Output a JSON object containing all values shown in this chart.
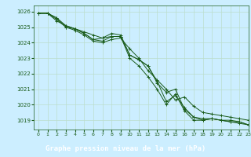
{
  "title": "Graphe pression niveau de la mer (hPa)",
  "background_color": "#cceeff",
  "grid_color": "#bbddcc",
  "line_color": "#1a5c1a",
  "xlabel_bg": "#3a7a3a",
  "xlim": [
    -0.5,
    23
  ],
  "ylim": [
    1018.4,
    1026.4
  ],
  "yticks": [
    1019,
    1020,
    1021,
    1022,
    1023,
    1024,
    1025,
    1026
  ],
  "xticks": [
    0,
    1,
    2,
    3,
    4,
    5,
    6,
    7,
    8,
    9,
    10,
    11,
    12,
    13,
    14,
    15,
    16,
    17,
    18,
    19,
    20,
    21,
    22,
    23
  ],
  "series": [
    [
      1025.9,
      1025.9,
      1025.6,
      1025.1,
      1024.9,
      1024.7,
      1024.5,
      1024.3,
      1024.4,
      1024.4,
      1023.0,
      1022.5,
      1021.8,
      1021.0,
      1020.0,
      1020.7,
      1019.6,
      1019.0,
      1019.0,
      1019.1,
      1019.0,
      1018.9,
      1018.8,
      1018.7
    ],
    [
      1025.9,
      1025.9,
      1025.6,
      1025.0,
      1024.9,
      1024.6,
      1024.2,
      1024.1,
      1024.4,
      1024.4,
      1023.2,
      1022.9,
      1022.5,
      1021.5,
      1020.2,
      1020.6,
      1019.8,
      1019.2,
      1019.1,
      1019.1,
      1019.0,
      1019.0,
      1018.9,
      1018.7
    ],
    [
      1025.9,
      1025.9,
      1025.4,
      1025.1,
      1024.9,
      1024.6,
      1024.2,
      1024.3,
      1024.6,
      1024.5,
      1023.2,
      1022.9,
      1022.5,
      1021.4,
      1020.8,
      1021.0,
      1019.7,
      1019.2,
      1019.0,
      1019.1,
      1019.0,
      1018.9,
      1018.9,
      1018.7
    ],
    [
      1025.9,
      1025.9,
      1025.5,
      1025.0,
      1024.8,
      1024.5,
      1024.1,
      1024.0,
      1024.2,
      1024.3,
      1023.6,
      1023.0,
      1022.2,
      1021.6,
      1021.0,
      1020.3,
      1020.5,
      1019.9,
      1019.5,
      1019.4,
      1019.3,
      1019.2,
      1019.1,
      1019.0
    ]
  ]
}
